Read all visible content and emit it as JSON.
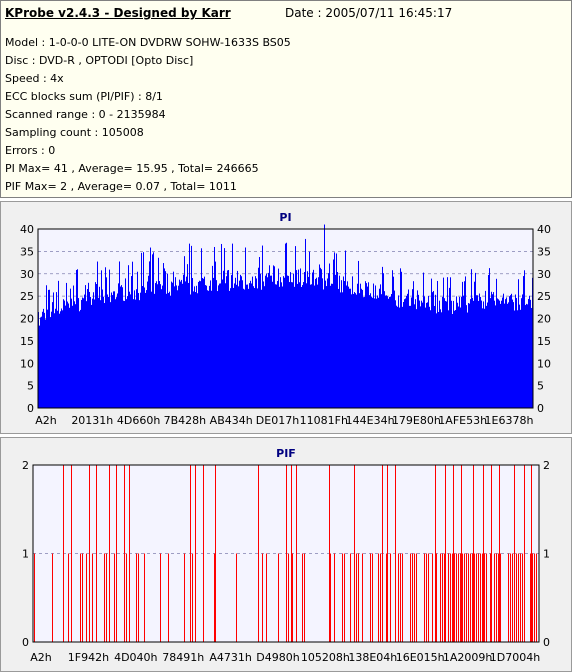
{
  "header": {
    "title": "KProbe v2.4.3 - Designed by Karr",
    "date": "Date : 2005/07/11 16:45:17",
    "lines": [
      "Model : 1-0-0-0 LITE-ON DVDRW SOHW-1633S BS05",
      "Disc : DVD-R , OPTODI [Opto Disc]",
      "Speed : 4x",
      "ECC blocks sum (PI/PIF) : 8/1",
      "Scanned range : 0 - 2135984",
      "Sampling count : 105008",
      "Errors : 0",
      "PI Max= 41 , Average= 15.95 , Total= 246665",
      "PIF Max= 2 , Average= 0.07 , Total= 1011"
    ]
  },
  "chart_data": [
    {
      "type": "bar",
      "title": "PI",
      "color": "#0000ff",
      "ylim": [
        0,
        40
      ],
      "yticks": [
        "0",
        "5",
        "10",
        "15",
        "20",
        "25",
        "30",
        "35",
        "40"
      ],
      "xtick_labels": [
        "A2h",
        "20131h",
        "4D660h",
        "7B428h",
        "AB434h",
        "DE017h",
        "11081Fh",
        "144E34h",
        "179E80h",
        "1AFE53h",
        "1E6378h"
      ],
      "summary": {
        "max": 41,
        "average": 15.95,
        "total": 246665
      },
      "profile_x": [
        0,
        0.01,
        0.03,
        0.06,
        0.1,
        0.15,
        0.2,
        0.25,
        0.3,
        0.35,
        0.4,
        0.45,
        0.5,
        0.55,
        0.6,
        0.65,
        0.7,
        0.75,
        0.8,
        0.85,
        0.9,
        0.95,
        1.0
      ],
      "profile_baseline": [
        15,
        19,
        20,
        21,
        22,
        23,
        24,
        25,
        25,
        26,
        26,
        26,
        27,
        27,
        26,
        25,
        23,
        22,
        21,
        21,
        22,
        22,
        21
      ],
      "profile_peaks": [
        25,
        28,
        31,
        31,
        32,
        34,
        36,
        36,
        37,
        37,
        38,
        38,
        37,
        38,
        36,
        35,
        33,
        31,
        30,
        31,
        32,
        32,
        31
      ],
      "peak_value": 41,
      "peak_x": 0.577
    },
    {
      "type": "bar",
      "title": "PIF",
      "color": "#ff0000",
      "ylim": [
        0,
        2
      ],
      "yticks": [
        "0",
        "1",
        "2"
      ],
      "xtick_labels": [
        "A2h",
        "1F942h",
        "4D040h",
        "78491h",
        "A4731h",
        "D4980h",
        "105208h",
        "138E04h",
        "16E015h",
        "1A2009h",
        "1D7004h"
      ],
      "summary": {
        "max": 2,
        "average": 0.07,
        "total": 1011
      },
      "value_one_density": [
        0.4,
        0.35,
        0.3,
        0.2,
        0.15,
        0.15,
        0.15,
        0.2,
        0.3,
        0.45,
        0.6,
        0.8,
        0.85,
        0.8
      ],
      "value_two_x": [
        0.06,
        0.075,
        0.11,
        0.125,
        0.15,
        0.165,
        0.18,
        0.19,
        0.31,
        0.32,
        0.335,
        0.36,
        0.445,
        0.5,
        0.51,
        0.52,
        0.585,
        0.635,
        0.69,
        0.7,
        0.715,
        0.795,
        0.815,
        0.83,
        0.845,
        0.87,
        0.89,
        0.905,
        0.92,
        0.95,
        0.97,
        0.985
      ]
    }
  ]
}
